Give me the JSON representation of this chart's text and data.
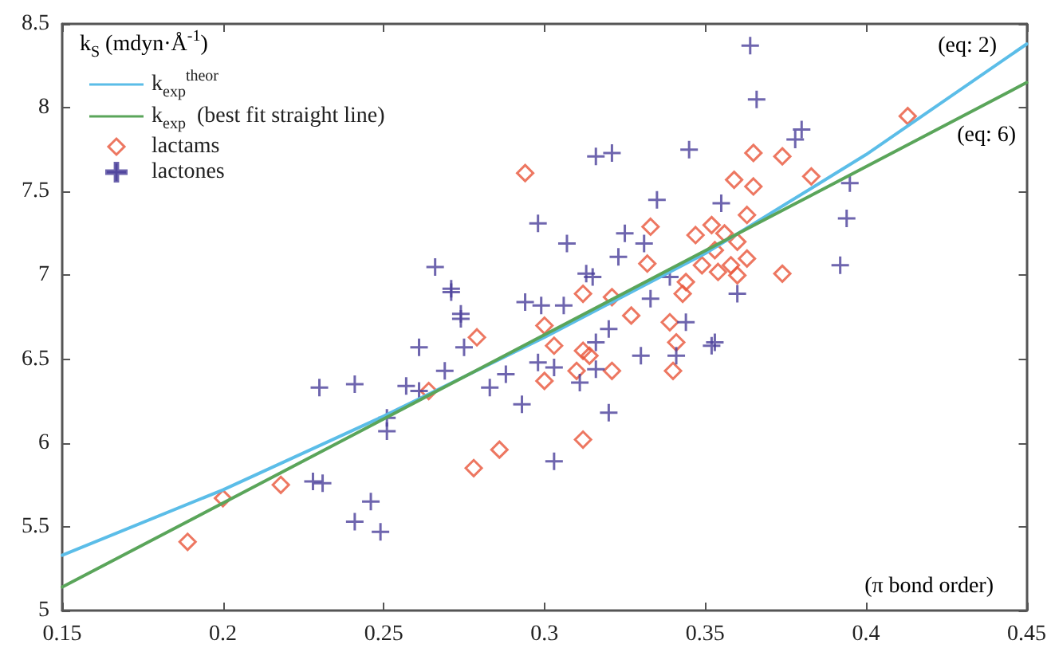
{
  "chart_data": {
    "type": "scatter",
    "ylabel": "k$_{S}$ (mdyn·Å$^{-1}$)",
    "xlabel": "(π bond order)",
    "xlim": [
      0.15,
      0.45
    ],
    "xticks": [
      0.15,
      0.2,
      0.25,
      0.3,
      0.35,
      0.4,
      0.45
    ],
    "ylim": [
      5,
      8.5
    ],
    "yticks": [
      5,
      5.5,
      6,
      6.5,
      7,
      7.5,
      8,
      8.5
    ],
    "grid": false,
    "legend": "top left",
    "annotations": [
      "(eq: 2)",
      "(eq: 6)"
    ],
    "series": [
      {
        "name": "k$_{exp}$$^{theor}$",
        "type": "line",
        "color": "#5bbde8",
        "marker": "none",
        "x": [
          0.15,
          0.2,
          0.25,
          0.3,
          0.35,
          0.4,
          0.45
        ],
        "values": [
          5.33,
          5.72,
          6.16,
          6.63,
          7.13,
          7.72,
          8.38
        ]
      },
      {
        "name": "k$_{exp}$  (best fit straight line)",
        "type": "line",
        "color": "#5aa55a",
        "marker": "none",
        "x": [
          0.15,
          0.45
        ],
        "values": [
          5.14,
          8.15
        ]
      },
      {
        "name": "lactams",
        "color": "#e8553a",
        "marker": "diamond",
        "x": [
          0.189,
          0.2,
          0.218,
          0.264,
          0.279,
          0.278,
          0.286,
          0.3,
          0.303,
          0.3,
          0.312,
          0.314,
          0.31,
          0.321,
          0.312,
          0.321,
          0.327,
          0.339,
          0.341,
          0.34,
          0.343,
          0.312,
          0.294,
          0.333,
          0.332,
          0.347,
          0.352,
          0.353,
          0.349,
          0.344,
          0.413,
          0.365,
          0.374,
          0.383,
          0.359,
          0.365,
          0.363,
          0.374,
          0.356,
          0.36,
          0.363,
          0.358,
          0.354,
          0.36
        ],
        "values": [
          5.41,
          5.67,
          5.75,
          6.31,
          6.63,
          5.85,
          5.96,
          6.7,
          6.58,
          6.37,
          6.55,
          6.52,
          6.43,
          6.43,
          6.02,
          6.87,
          6.76,
          6.72,
          6.6,
          6.43,
          6.89,
          6.89,
          7.61,
          7.29,
          7.07,
          7.24,
          7.3,
          7.15,
          7.06,
          6.96,
          7.95,
          7.73,
          7.71,
          7.59,
          7.57,
          7.53,
          7.36,
          7.01,
          7.25,
          7.2,
          7.1,
          7.06,
          7.02,
          7.0
        ]
      },
      {
        "name": "lactones",
        "color": "#4a3f9a",
        "marker": "cross",
        "x": [
          0.23,
          0.241,
          0.228,
          0.231,
          0.246,
          0.241,
          0.249,
          0.251,
          0.251,
          0.257,
          0.261,
          0.261,
          0.269,
          0.275,
          0.274,
          0.283,
          0.288,
          0.293,
          0.298,
          0.303,
          0.311,
          0.316,
          0.316,
          0.32,
          0.32,
          0.303,
          0.33,
          0.333,
          0.341,
          0.344,
          0.353,
          0.294,
          0.299,
          0.306,
          0.271,
          0.266,
          0.271,
          0.274,
          0.298,
          0.307,
          0.316,
          0.321,
          0.345,
          0.335,
          0.325,
          0.331,
          0.323,
          0.313,
          0.315,
          0.339,
          0.355,
          0.364,
          0.366,
          0.38,
          0.378,
          0.395,
          0.394,
          0.392,
          0.36,
          0.352
        ],
        "values": [
          6.33,
          6.35,
          5.77,
          5.76,
          5.65,
          5.53,
          5.47,
          6.15,
          6.07,
          6.34,
          6.31,
          6.57,
          6.43,
          6.57,
          6.74,
          6.33,
          6.41,
          6.23,
          6.48,
          6.45,
          6.36,
          6.44,
          6.6,
          6.68,
          6.18,
          5.89,
          6.52,
          6.86,
          6.52,
          6.72,
          6.6,
          6.84,
          6.82,
          6.82,
          6.9,
          7.05,
          6.92,
          6.77,
          7.31,
          7.19,
          7.71,
          7.73,
          7.75,
          7.45,
          7.25,
          7.19,
          7.11,
          7.01,
          6.99,
          6.99,
          7.43,
          8.37,
          8.05,
          7.87,
          7.81,
          7.55,
          7.34,
          7.06,
          6.89,
          6.58
        ]
      }
    ]
  }
}
